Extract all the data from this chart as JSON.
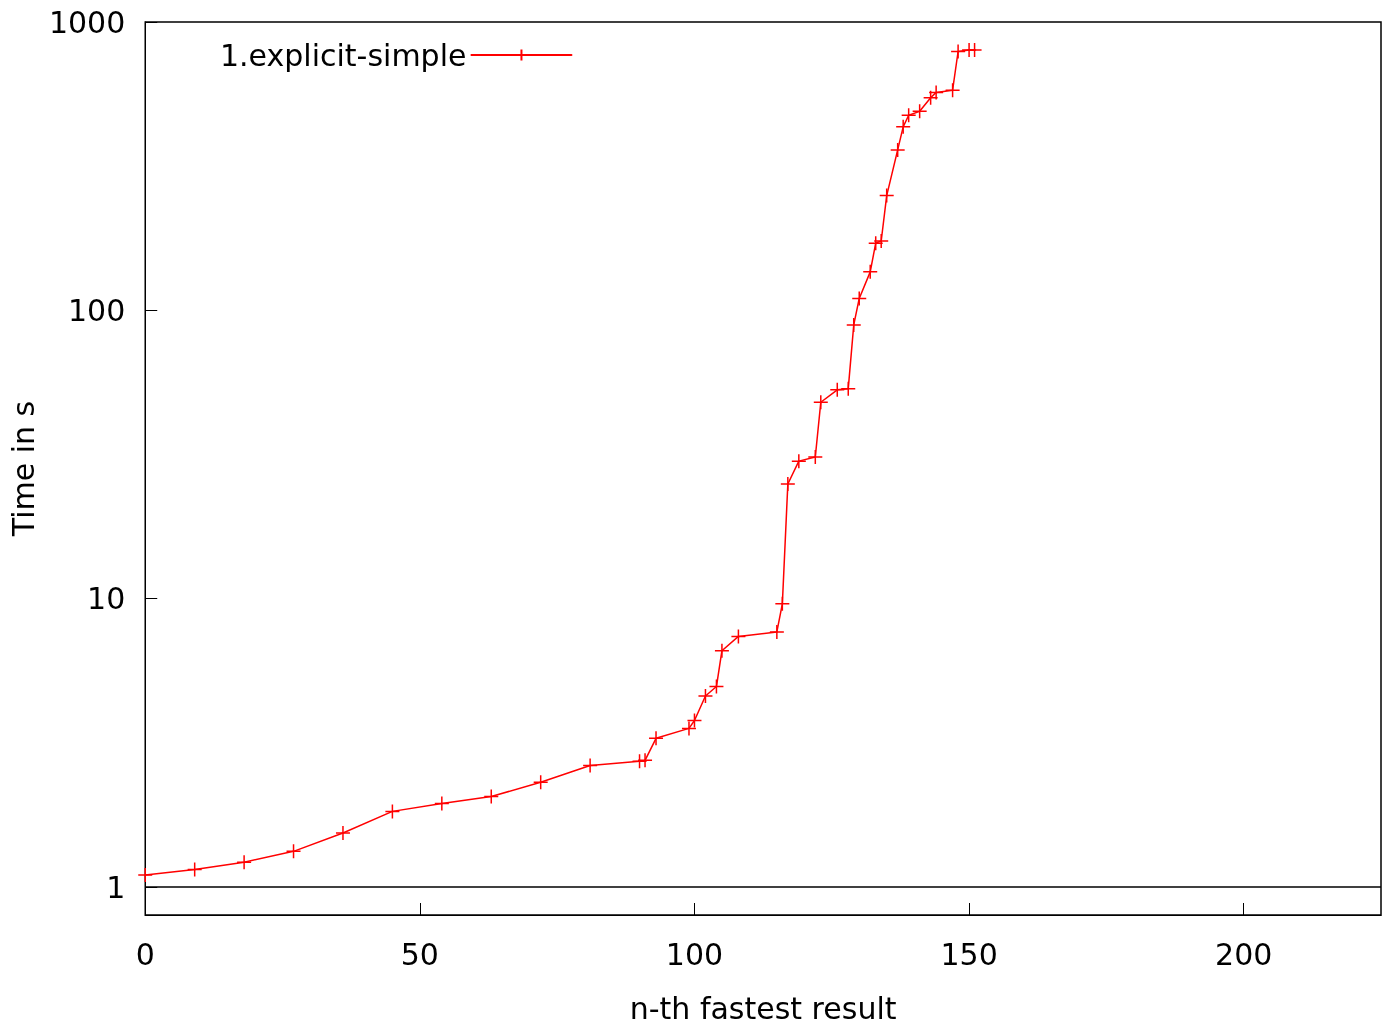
{
  "chart_data": {
    "type": "line",
    "xlabel": "n-th fastest result",
    "ylabel": "Time in s",
    "log": "y",
    "xlim": [
      0,
      225
    ],
    "xticks": [
      0,
      50,
      100,
      150,
      200
    ],
    "ylim": [
      0.8,
      1000
    ],
    "yticks": [
      1,
      10,
      100,
      1000
    ],
    "grid": false,
    "legend": "top left",
    "marker": "cross",
    "line_style": "solid",
    "ref_lines": [
      {
        "axis": "y",
        "value": 1,
        "color": "#000000"
      }
    ],
    "x": [
      0,
      9,
      18,
      27,
      36,
      45,
      54,
      63,
      72,
      81,
      90,
      91,
      93,
      99,
      100,
      102,
      104,
      105,
      108,
      115,
      116,
      117,
      119,
      122,
      123,
      126,
      128,
      129,
      130,
      132,
      133,
      134,
      135,
      137,
      138,
      139,
      141,
      143,
      144,
      147,
      148,
      150,
      151
    ],
    "series": [
      {
        "name": "1.explicit-simple",
        "color": "#ff0000",
        "values": [
          1.1,
          1.15,
          1.22,
          1.33,
          1.54,
          1.83,
          1.95,
          2.06,
          2.31,
          2.64,
          2.73,
          2.75,
          3.28,
          3.55,
          3.78,
          4.6,
          4.96,
          6.6,
          7.4,
          7.67,
          9.6,
          25,
          30,
          31,
          48,
          53,
          53.5,
          89,
          110,
          136,
          171,
          174,
          250,
          360,
          433,
          475,
          490,
          546,
          570,
          580,
          790,
          800,
          800
        ]
      }
    ]
  }
}
